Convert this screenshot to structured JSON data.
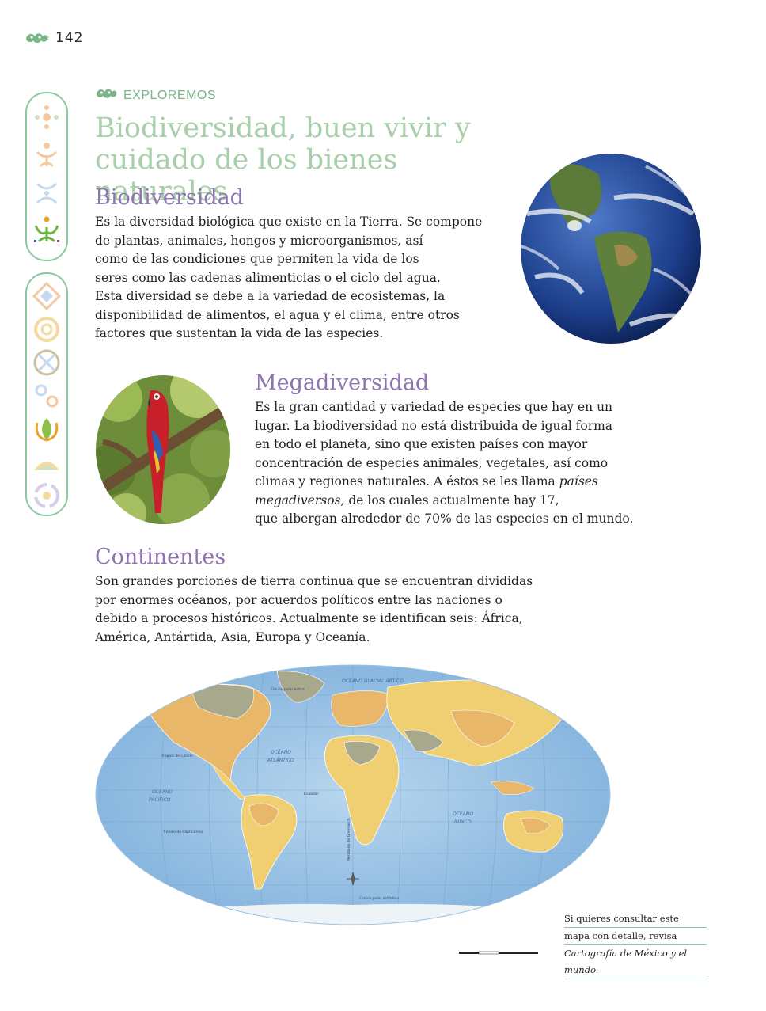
{
  "header": {
    "page_number": "142",
    "section_label": "EXPLOREMOS"
  },
  "title": "Biodiversidad, buen vivir y cuidado de los bienes naturales",
  "sections": [
    {
      "heading": "Biodiversidad",
      "lines": [
        "Es la diversidad biológica que existe en la Tierra. Se compone",
        "de plantas, animales, hongos y microorganismos, así",
        "como de las condiciones que permiten la vida de los",
        "seres como las cadenas alimenticias o el ciclo del agua.",
        "Esta diversidad se debe a la variedad de ecosistemas, la",
        "disponibilidad de alimentos, el agua y el clima, entre otros",
        "factores que sustentan la vida de las especies."
      ]
    },
    {
      "heading": "Megadiversidad",
      "lines": [
        "Es la gran cantidad y variedad de especies que hay en un",
        "lugar. La biodiversidad no está distribuida de igual forma",
        "en todo el planeta, sino que existen países con mayor",
        "concentración de especies animales, vegetales, así como",
        "climas y regiones naturales. A éstos se les llama "
      ],
      "italic_term": "países megadiversos,",
      "line_after_italic": " de los cuales actualmente hay 17,",
      "last_line": "que albergan alrededor de 70% de las especies en el mundo."
    },
    {
      "heading": "Continentes",
      "lines": [
        "Son grandes porciones de tierra continua que se encuentran divididas",
        "por enormes océanos, por acuerdos políticos entre las naciones o",
        "debido a procesos históricos. Actualmente se identifican seis: África,",
        "América, Antártida, Asia, Europa y Oceanía."
      ]
    }
  ],
  "map_labels": {
    "arctic": "OCÉANO GLACIAL ÁRTICO",
    "atlantic_1": "OCÉANO",
    "atlantic_2": "ATLÁNTICO",
    "pacific_1": "OCÉANO",
    "pacific_2": "PACÍFICO",
    "indian_1": "OCÉANO",
    "indian_2": "ÍNDICO",
    "cancer": "Trópico de Cáncer",
    "capricorn": "Trópico de Capricornio",
    "equator": "Ecuador",
    "arctic_circle": "Círculo polar ártico",
    "antarctic_circle": "Círculo polar antártico",
    "greenwich": "Meridiano de Greenwich"
  },
  "note": {
    "line1": "Si quieres consultar este",
    "line2": "mapa con detalle, revisa",
    "line3": "Cartografía de México y el mundo."
  },
  "colors": {
    "title_green": "#a7cfa9",
    "heading_purple": "#8e74b0",
    "sidebar_border": "#8cc7a1",
    "ocean": "#a8cbe6",
    "land_orange": "#e8b769",
    "land_yellow": "#f0cf73",
    "land_grey": "#a8a98c"
  }
}
